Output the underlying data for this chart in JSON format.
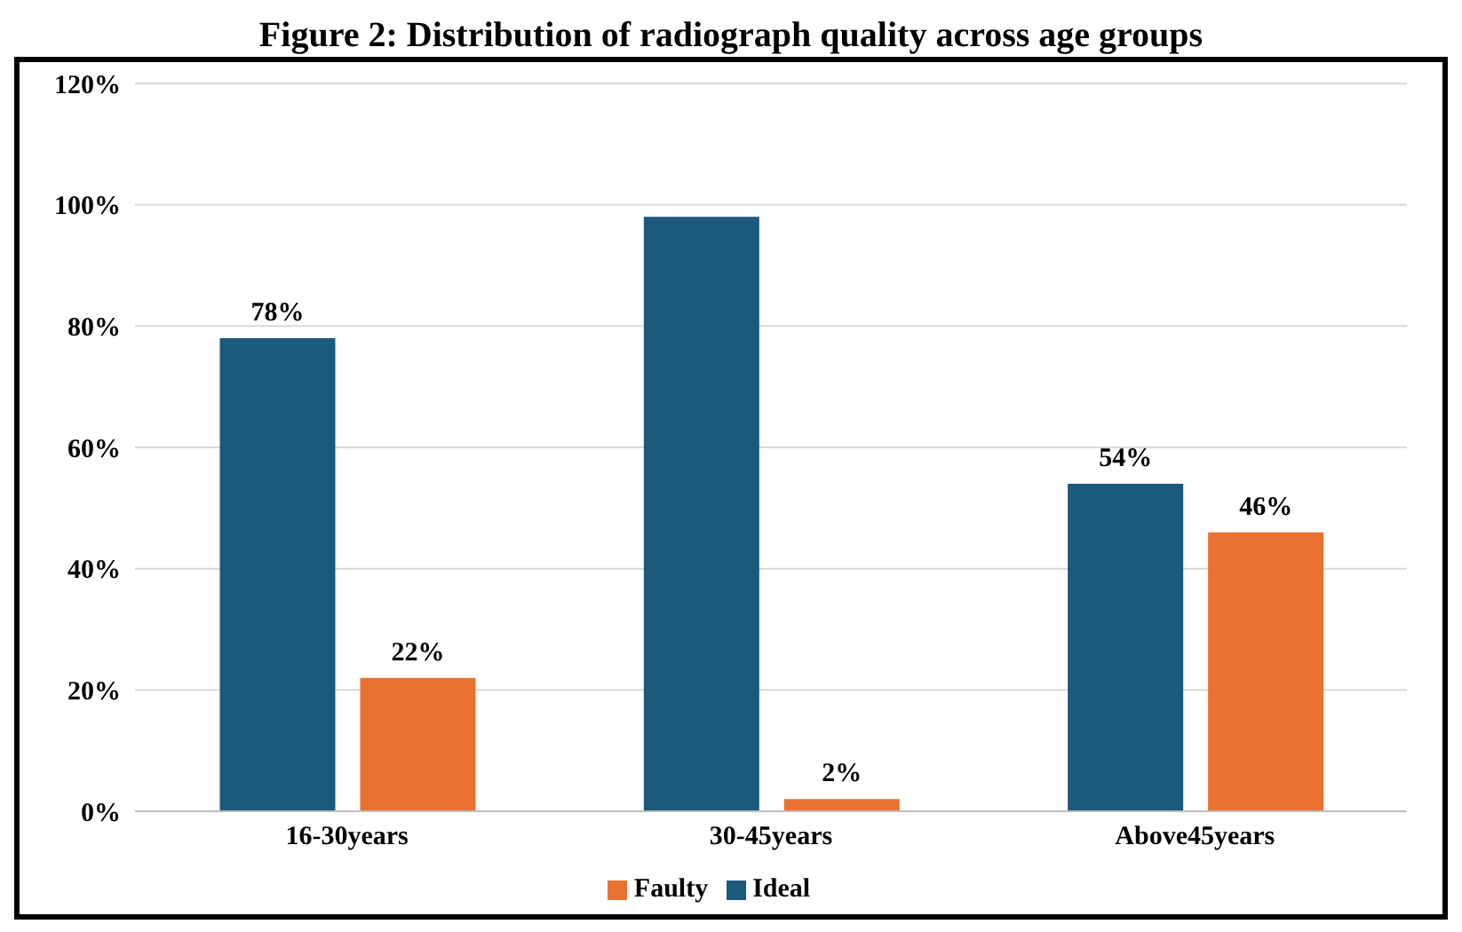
{
  "chart_data": {
    "type": "bar",
    "title": "Figure 2: Distribution of radiograph quality across age groups",
    "categories": [
      "16-30years",
      "30-45years",
      "Above45years"
    ],
    "series": [
      {
        "name": "Ideal",
        "color": "#1b5a7a",
        "values": [
          78,
          98,
          54
        ],
        "value_labels": [
          "78%",
          null,
          "54%"
        ]
      },
      {
        "name": "Faulty",
        "color": "#e97132",
        "values": [
          22,
          2,
          46
        ],
        "value_labels": [
          "22%",
          "2%",
          "46%"
        ]
      }
    ],
    "ylim": [
      0,
      120
    ],
    "yticks": [
      {
        "value": 0,
        "label": "0%"
      },
      {
        "value": 20,
        "label": "20%"
      },
      {
        "value": 40,
        "label": "40%"
      },
      {
        "value": 60,
        "label": "60%"
      },
      {
        "value": 80,
        "label": "80%"
      },
      {
        "value": 100,
        "label": "100%"
      },
      {
        "value": 120,
        "label": "120%"
      }
    ],
    "grid": "y",
    "legend": "bottom"
  }
}
